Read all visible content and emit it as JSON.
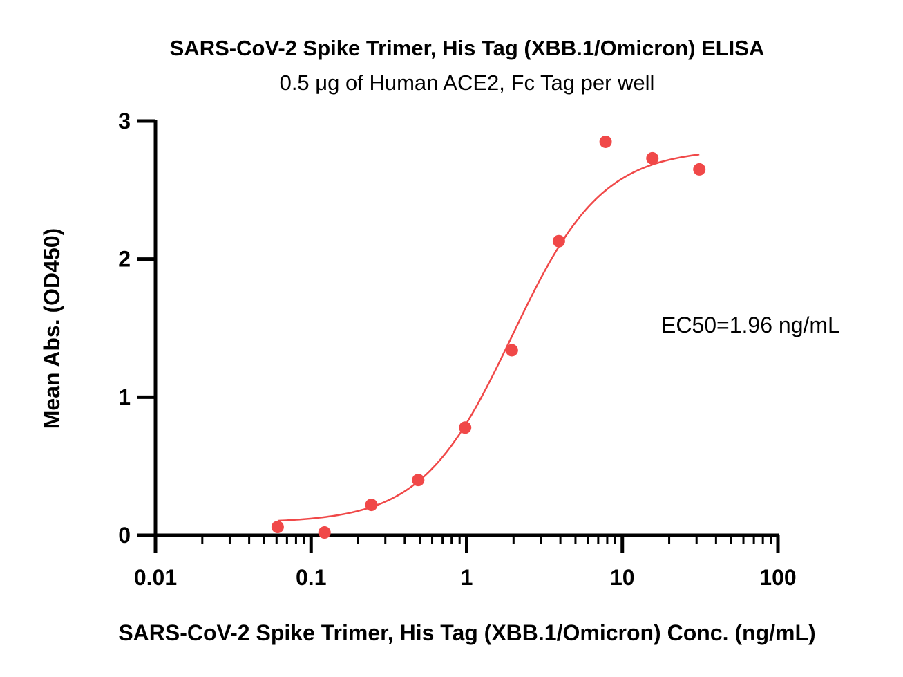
{
  "chart_data": {
    "type": "scatter",
    "title": "SARS-CoV-2 Spike Trimer, His Tag (XBB.1/Omicron) ELISA",
    "subtitle": "0.5 μg of Human ACE2, Fc Tag per well",
    "xlabel": "SARS-CoV-2 Spike Trimer, His Tag (XBB.1/Omicron) Conc. (ng/mL)",
    "ylabel": "Mean Abs. (OD450)",
    "x_scale": "log",
    "xlim": [
      0.01,
      100
    ],
    "ylim": [
      0,
      3
    ],
    "x_ticks": [
      0.01,
      0.1,
      1,
      10,
      100
    ],
    "x_tick_labels": [
      "0.01",
      "0.1",
      "1",
      "10",
      "100"
    ],
    "y_ticks": [
      0,
      1,
      2,
      3
    ],
    "y_tick_labels": [
      "0",
      "1",
      "2",
      "3"
    ],
    "grid": false,
    "legend": "none",
    "color": "#f04848",
    "series": [
      {
        "x": [
          0.061,
          0.122,
          0.244,
          0.488,
          0.977,
          1.95,
          3.91,
          7.81,
          15.6,
          31.25
        ],
        "y": [
          0.06,
          0.02,
          0.22,
          0.4,
          0.78,
          1.34,
          2.13,
          2.85,
          2.73,
          2.65
        ]
      }
    ],
    "fit": {
      "model": "4PL",
      "bottom": 0.09,
      "top": 2.8,
      "ec50": 1.96,
      "hill": 1.5,
      "x_start": 0.061,
      "x_end": 31.25
    },
    "annotations": [
      {
        "text": "EC50=1.96 ng/mL"
      }
    ]
  }
}
